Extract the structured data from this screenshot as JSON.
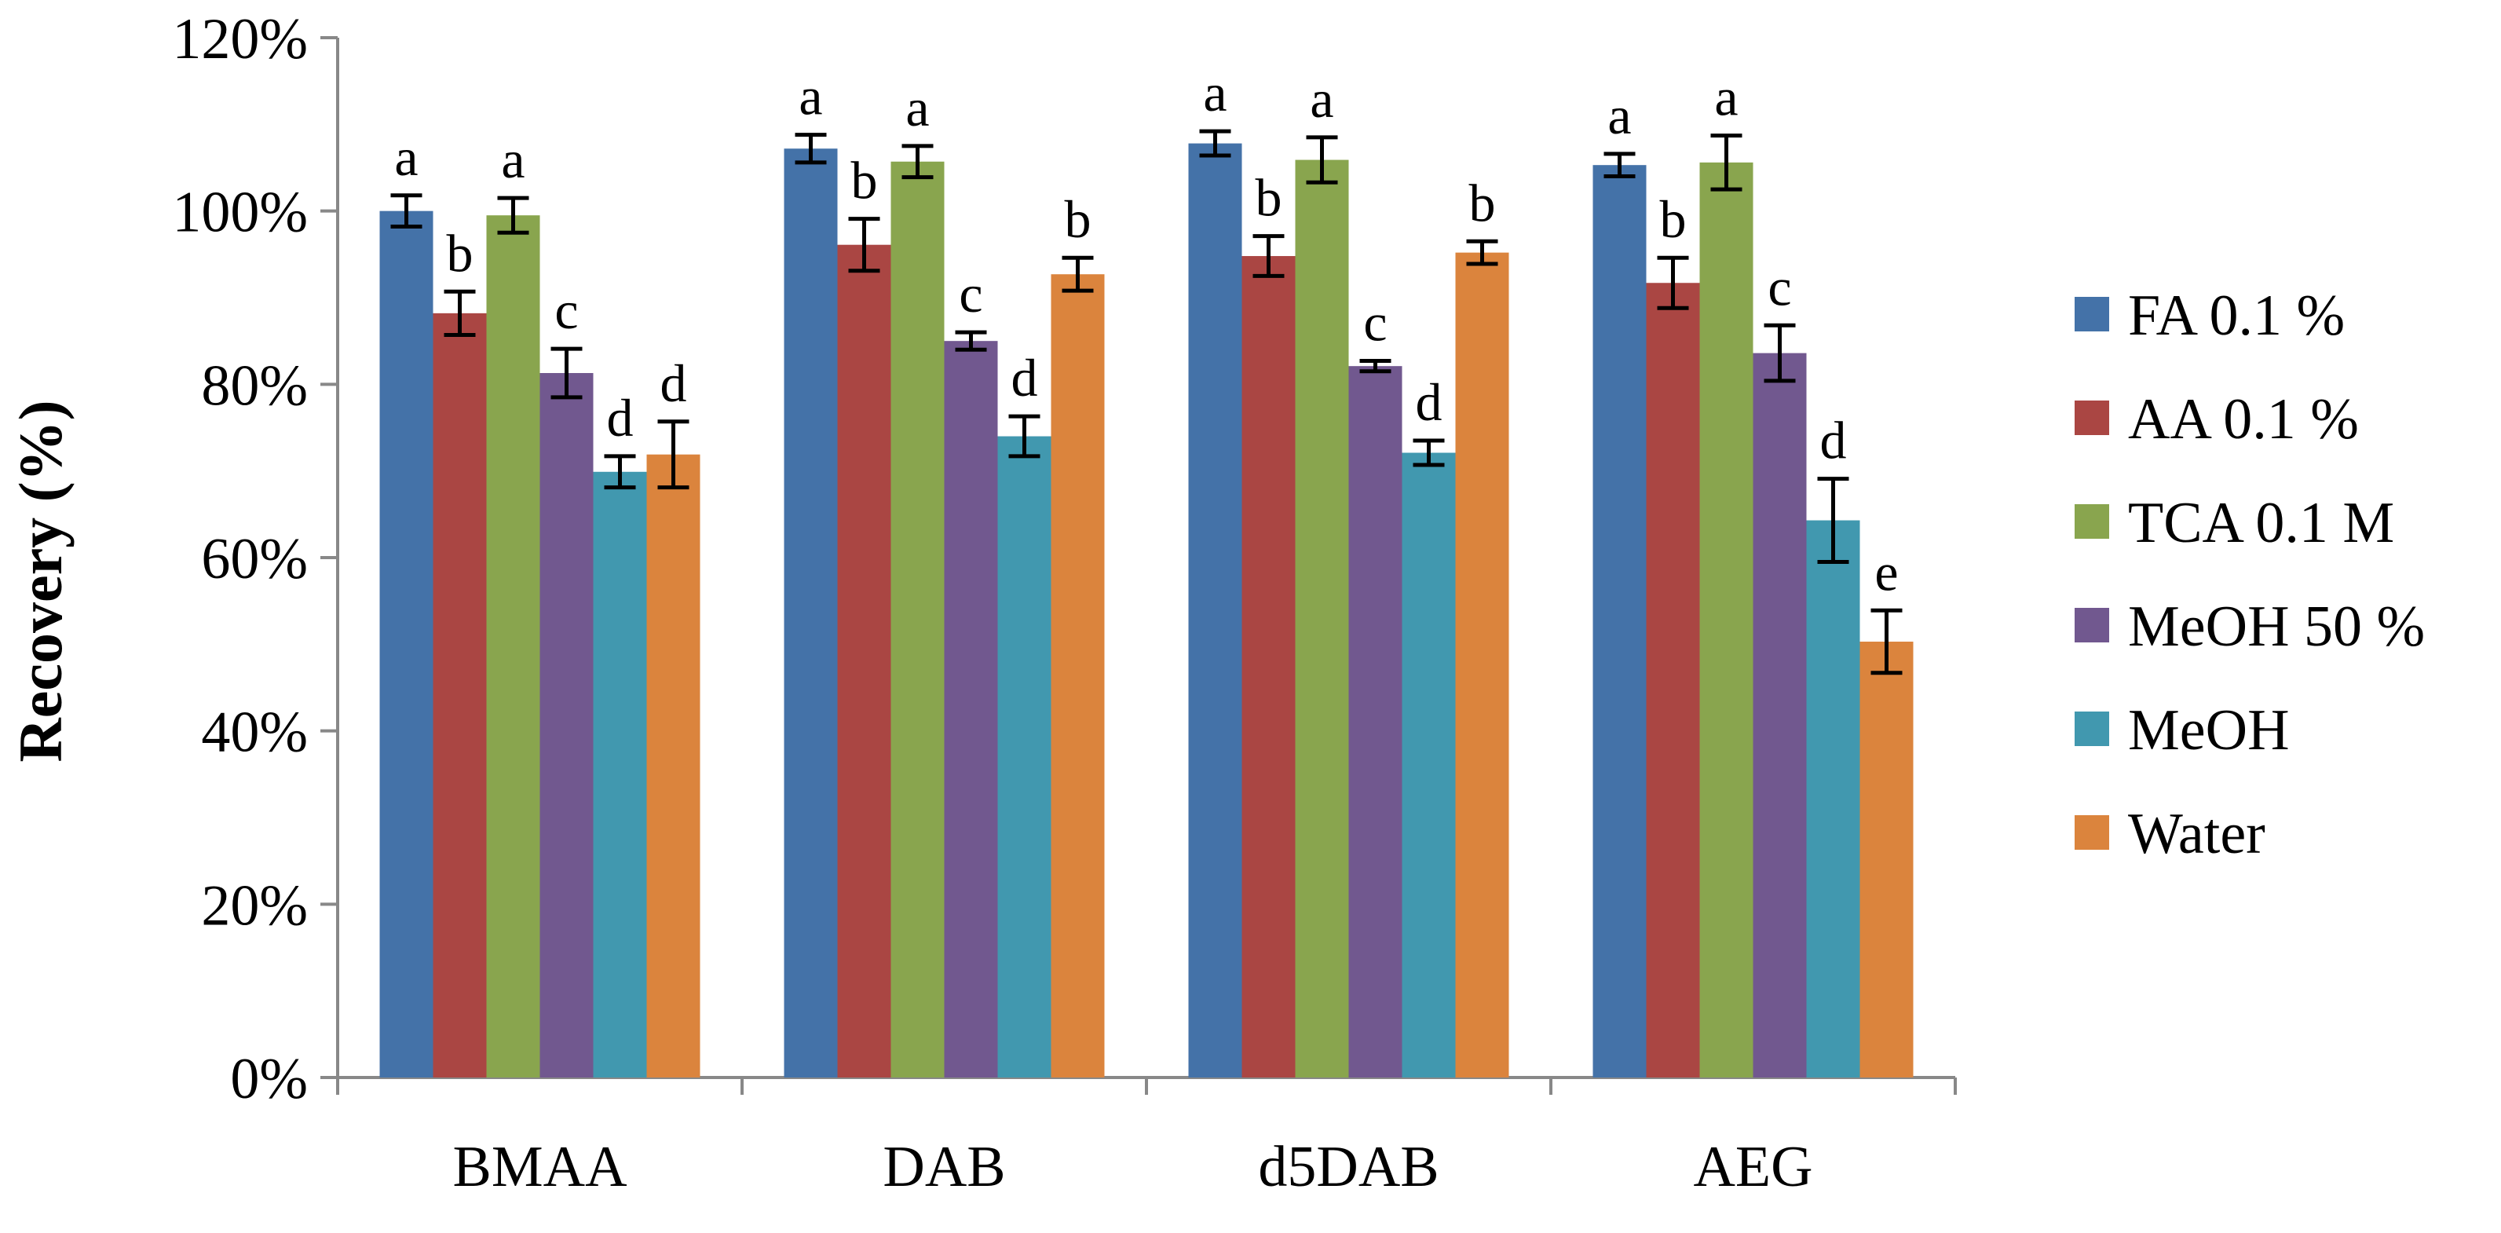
{
  "chart_data": {
    "type": "bar",
    "title": "",
    "xlabel": "",
    "ylabel": "Recovery (%)",
    "ylim": [
      0,
      120
    ],
    "y_ticks": [
      "0%",
      "20%",
      "40%",
      "60%",
      "80%",
      "100%",
      "120%"
    ],
    "y_tick_values": [
      0,
      20,
      40,
      60,
      80,
      100,
      120
    ],
    "grid": false,
    "legend_position": "right",
    "categories": [
      "BMAA",
      "DAB",
      "d5DAB",
      "AEG"
    ],
    "series": [
      {
        "name": "FA 0.1 %",
        "color": "#4472a8",
        "values": [
          100.0,
          107.2,
          107.8,
          105.3
        ],
        "errors": [
          1.8,
          1.6,
          1.4,
          1.3
        ],
        "letters": [
          "a",
          "a",
          "a",
          "a"
        ]
      },
      {
        "name": "AA 0.1 %",
        "color": "#aa4643",
        "values": [
          88.2,
          96.1,
          94.8,
          91.7
        ],
        "errors": [
          2.5,
          3.0,
          2.3,
          2.9
        ],
        "letters": [
          "b",
          "b",
          "b",
          "b"
        ]
      },
      {
        "name": "TCA 0.1 M",
        "color": "#89a54e",
        "values": [
          99.5,
          105.7,
          105.9,
          105.6
        ],
        "errors": [
          2.0,
          1.8,
          2.6,
          3.1
        ],
        "letters": [
          "a",
          "a",
          "a",
          "a"
        ]
      },
      {
        "name": "MeOH 50 %",
        "color": "#71588f",
        "values": [
          81.3,
          85.0,
          82.1,
          83.6
        ],
        "errors": [
          2.8,
          1.0,
          0.6,
          3.2
        ],
        "letters": [
          "c",
          "c",
          "c",
          "c"
        ]
      },
      {
        "name": "MeOH",
        "color": "#4198af",
        "values": [
          69.9,
          74.0,
          72.1,
          64.3
        ],
        "errors": [
          1.8,
          2.3,
          1.4,
          4.8
        ],
        "letters": [
          "d",
          "d",
          "d",
          "d"
        ]
      },
      {
        "name": "Water",
        "color": "#db843d",
        "values": [
          71.9,
          92.7,
          95.2,
          50.3
        ],
        "errors": [
          3.8,
          1.9,
          1.3,
          3.6
        ],
        "letters": [
          "d",
          "b",
          "b",
          "e"
        ]
      }
    ]
  }
}
